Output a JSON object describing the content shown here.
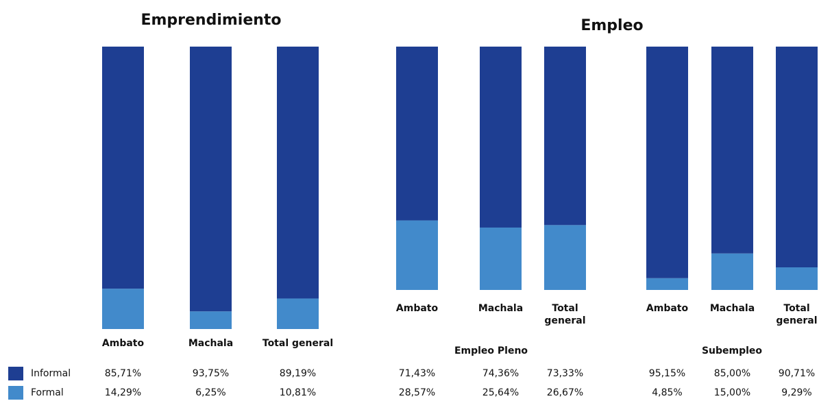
{
  "chart_data": [
    {
      "type": "bar",
      "stacked": true,
      "title": "Emprendimiento",
      "categories": [
        "Ambato",
        "Machala",
        "Total general"
      ],
      "ylim": [
        0,
        100
      ],
      "series": [
        {
          "name": "Informal",
          "color": "#1e3e92",
          "values": [
            85.71,
            93.75,
            89.19
          ],
          "value_labels": [
            "85,71%",
            "93,75%",
            "89,19%"
          ]
        },
        {
          "name": "Formal",
          "color": "#428acb",
          "values": [
            14.29,
            6.25,
            10.81
          ],
          "value_labels": [
            "14,29%",
            "6,25%",
            "10,81%"
          ]
        }
      ]
    },
    {
      "type": "bar",
      "stacked": true,
      "title": "Empleo",
      "ylim": [
        0,
        100
      ],
      "groups": [
        {
          "name": "Empleo Pleno",
          "categories": [
            "Ambato",
            "Machala",
            "Total general"
          ],
          "series": [
            {
              "color": "#1e3e92",
              "values": [
                71.43,
                74.36,
                73.33
              ],
              "value_labels": [
                "71,43%",
                "74,36%",
                "73,33%"
              ]
            },
            {
              "color": "#428acb",
              "values": [
                28.57,
                25.64,
                26.67
              ],
              "value_labels": [
                "28,57%",
                "25,64%",
                "26,67%"
              ]
            }
          ]
        },
        {
          "name": "Subempleo",
          "categories": [
            "Ambato",
            "Machala",
            "Total general"
          ],
          "series": [
            {
              "color": "#1e3e92",
              "values": [
                95.15,
                85.0,
                90.71
              ],
              "value_labels": [
                "95,15%",
                "85,00%",
                "90,71%"
              ]
            },
            {
              "color": "#428acb",
              "values": [
                4.85,
                15.0,
                9.29
              ],
              "value_labels": [
                "4,85%",
                "15,00%",
                "9,29%"
              ]
            }
          ]
        }
      ]
    }
  ]
}
